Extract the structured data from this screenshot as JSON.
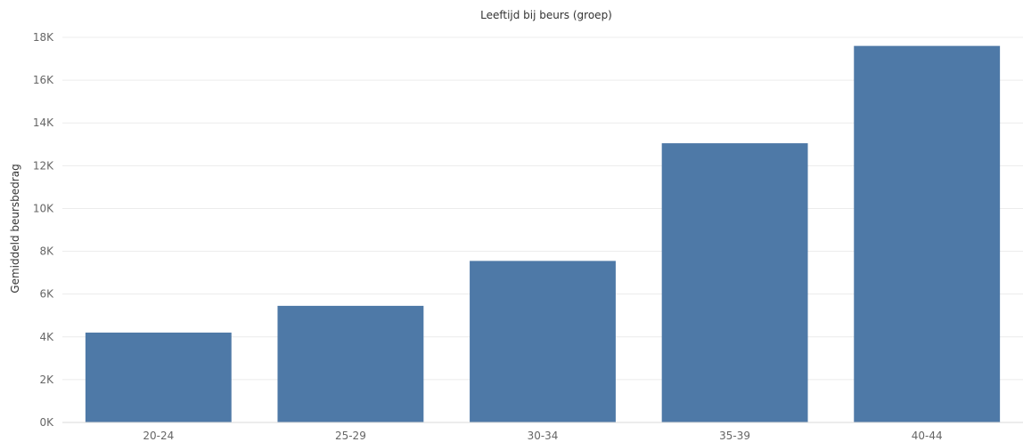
{
  "chart_data": {
    "type": "bar",
    "title": "Leeftijd bij beurs (groep)",
    "ylabel": "Gemiddeld beursbedrag",
    "xlabel": "",
    "categories": [
      "20-24",
      "25-29",
      "30-34",
      "35-39",
      "40-44"
    ],
    "values": [
      4200,
      5450,
      7550,
      13050,
      17600
    ],
    "ylim": [
      0,
      18000
    ],
    "yticks": [
      0,
      2000,
      4000,
      6000,
      8000,
      10000,
      12000,
      14000,
      16000,
      18000
    ],
    "ytick_labels": [
      "0K",
      "2K",
      "4K",
      "6K",
      "8K",
      "10K",
      "12K",
      "14K",
      "16K",
      "18K"
    ],
    "grid": true,
    "bar_color": "#4e79a7"
  }
}
